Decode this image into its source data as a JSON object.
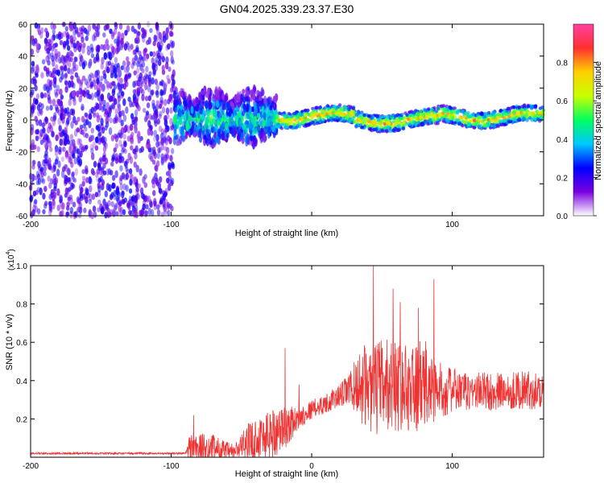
{
  "title": "GN04.2025.339.23.37.E30",
  "chart_data": [
    {
      "type": "heatmap",
      "xlabel": "Height of straight line (km)",
      "ylabel": "Frequency (Hz)",
      "xlim": [
        -200,
        165
      ],
      "ylim": [
        -60,
        60
      ],
      "xticks": [
        -200,
        -100,
        0,
        100
      ],
      "xtick_labels": [
        "-200",
        "-100",
        "",
        "100"
      ],
      "yticks": [
        -60,
        -40,
        -20,
        0,
        20,
        40,
        60
      ],
      "colorbar": {
        "label": "Normalized spectral amplitude",
        "range": [
          0,
          1
        ],
        "ticks": [
          0.0,
          0.2,
          0.4,
          0.6,
          0.8
        ],
        "tick_labels": [
          "0.0",
          "0.2",
          "0.4",
          "0.6",
          "0.8"
        ],
        "colormap": [
          "#ffffff",
          "#7a00e0",
          "#0000ff",
          "#00c8ff",
          "#00ff60",
          "#c8ff00",
          "#ffd000",
          "#ff3030",
          "#ff40a0"
        ]
      },
      "regions": [
        {
          "x": [
            -200,
            -98
          ],
          "freq": [
            -60,
            60
          ],
          "amplitude": 0.12,
          "description_level": "diffuse noise"
        },
        {
          "x": [
            -98,
            -25
          ],
          "freq": [
            -30,
            25
          ],
          "amplitude": 0.3,
          "description_level": "broad band"
        },
        {
          "x": [
            -25,
            165
          ],
          "freq": [
            -5,
            5
          ],
          "amplitude": 0.6,
          "description_level": "narrow band"
        }
      ]
    },
    {
      "type": "line",
      "xlabel": "Height of straight line (km)",
      "ylabel": "SNR (10 * v/v)",
      "multiplier_label": "(x10",
      "multiplier_exp": "4",
      "xlim": [
        -200,
        165
      ],
      "ylim": [
        0,
        1.0
      ],
      "xticks": [
        -200,
        -100,
        0,
        100
      ],
      "xtick_labels": [
        "-200",
        "-100",
        "0",
        "100"
      ],
      "yticks": [
        0.2,
        0.4,
        0.6,
        0.8,
        1.0
      ],
      "ytick_labels": [
        "0.2",
        "0.4",
        "0.6",
        "0.8",
        "1.0"
      ],
      "color": "#ee3333",
      "series": [
        {
          "envelope": {
            "x": [
              -200,
              -90,
              -87,
              -70,
              -60,
              -55,
              -45,
              -30,
              -20,
              -10,
              0,
              10,
              20,
              28,
              35,
              45,
              55,
              70,
              80,
              90,
              100,
              110,
              120,
              130,
              140,
              150,
              165
            ],
            "base": [
              0.02,
              0.02,
              0.05,
              0.05,
              0.03,
              0.03,
              0.08,
              0.12,
              0.15,
              0.2,
              0.25,
              0.28,
              0.32,
              0.36,
              0.38,
              0.36,
              0.38,
              0.36,
              0.37,
              0.35,
              0.35,
              0.34,
              0.35,
              0.34,
              0.35,
              0.35,
              0.35
            ],
            "amp": [
              0.005,
              0.005,
              0.08,
              0.07,
              0.05,
              0.04,
              0.1,
              0.14,
              0.12,
              0.06,
              0.05,
              0.05,
              0.06,
              0.1,
              0.2,
              0.25,
              0.25,
              0.22,
              0.25,
              0.15,
              0.12,
              0.1,
              0.1,
              0.1,
              0.1,
              0.1,
              0.1
            ]
          },
          "peaks": [
            {
              "x": 44,
              "y": 1.0
            },
            {
              "x": 87,
              "y": 0.93
            },
            {
              "x": 58,
              "y": 0.88
            },
            {
              "x": 63,
              "y": 0.81
            },
            {
              "x": 76,
              "y": 0.78
            },
            {
              "x": -19,
              "y": 0.57
            },
            {
              "x": -9,
              "y": 0.38
            },
            {
              "x": -84,
              "y": 0.22
            }
          ]
        }
      ]
    }
  ]
}
